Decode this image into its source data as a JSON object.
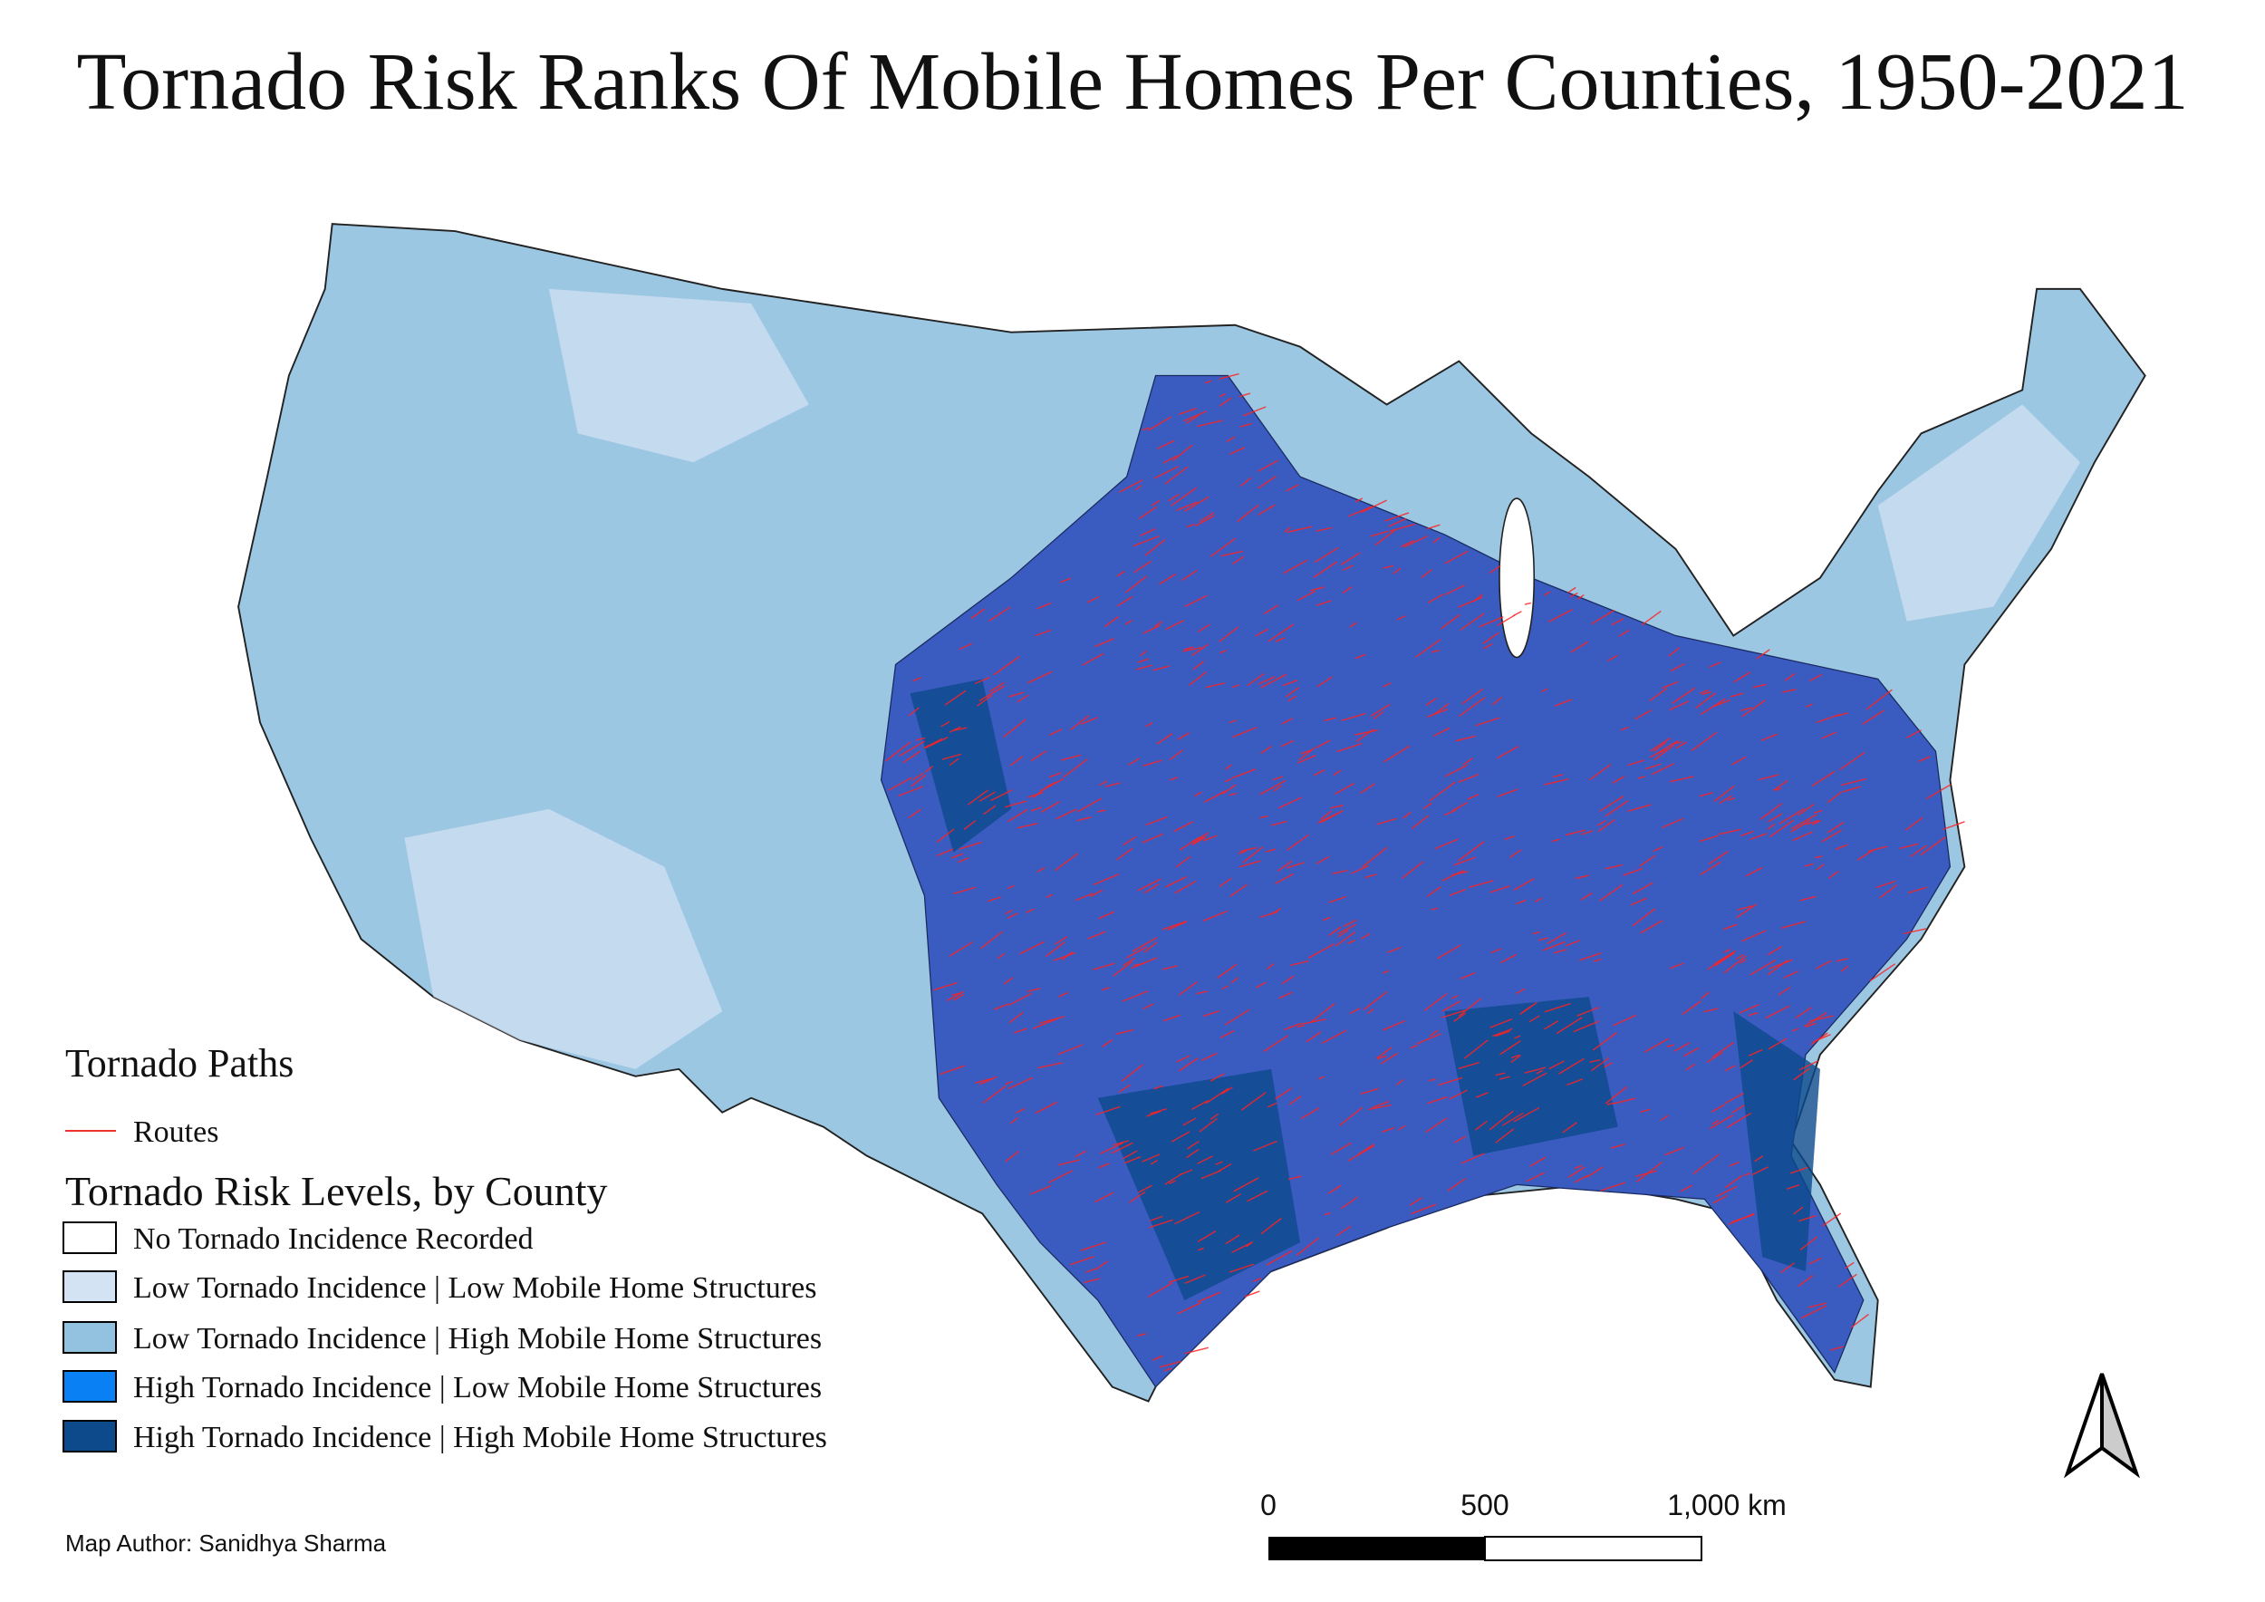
{
  "title": "Tornado Risk Ranks Of Mobile Homes Per Counties, 1950-2021",
  "legend": {
    "paths_title": "Tornado Paths",
    "paths_item": "Routes",
    "risk_title": "Tornado Risk Levels,  by County",
    "risk_items": [
      {
        "label": "No Tornado Incidence Recorded",
        "color": "#ffffff"
      },
      {
        "label": "Low Tornado Incidence  |  Low Mobile Home Structures",
        "color": "#d4e3f4"
      },
      {
        "label": "Low Tornado Incidence  |  High Mobile Home Structures",
        "color": "#92c2e0"
      },
      {
        "label": "High Tornado Incidence  |  Low Mobile Home Structures",
        "color": "#0a80f5"
      },
      {
        "label": "High Tornado Incidence  |  High Mobile Home Structures",
        "color": "#0d4a8c"
      }
    ]
  },
  "scale_bar": {
    "labels": [
      "0",
      "500",
      "1,000 km"
    ]
  },
  "author": "Map Author: Sanidhya Sharma"
}
